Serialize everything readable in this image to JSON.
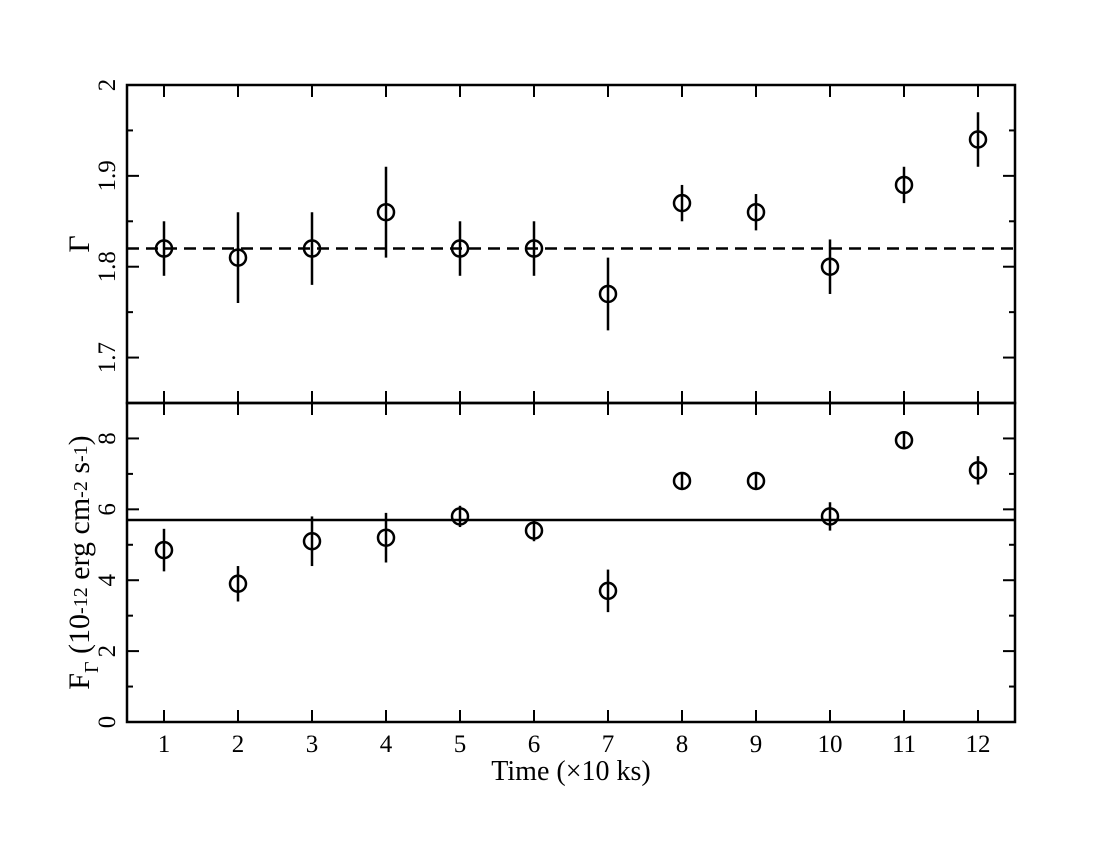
{
  "chart_data": [
    {
      "type": "scatter",
      "ylabel": "Γ",
      "x": [
        1,
        2,
        3,
        4,
        5,
        6,
        7,
        8,
        9,
        10,
        11,
        12
      ],
      "values": [
        1.82,
        1.81,
        1.82,
        1.86,
        1.82,
        1.82,
        1.77,
        1.87,
        1.86,
        1.8,
        1.89,
        1.94
      ],
      "errors": [
        0.03,
        0.05,
        0.04,
        0.05,
        0.03,
        0.03,
        0.04,
        0.02,
        0.02,
        0.03,
        0.02,
        0.03
      ],
      "color": "#000000",
      "xlim": [
        0.5,
        12.5
      ],
      "xticks": [
        1,
        2,
        3,
        4,
        5,
        6,
        7,
        8,
        9,
        10,
        11,
        12
      ],
      "xticklabels": false,
      "ylim": [
        1.65,
        2.0
      ],
      "yticks": [
        1.7,
        1.8,
        1.9,
        2
      ],
      "ref_line": {
        "value": 1.82,
        "style": "dashed"
      }
    },
    {
      "type": "scatter",
      "xlabel": "Time (×10 ks)",
      "ylabel_parts": [
        {
          "text": "F",
          "shift": "base"
        },
        {
          "text": "Γ",
          "shift": "sub"
        },
        {
          "text": " (10",
          "shift": "base"
        },
        {
          "text": "-12",
          "shift": "sup"
        },
        {
          "text": " erg cm",
          "shift": "base"
        },
        {
          "text": "-2",
          "shift": "sup"
        },
        {
          "text": " s",
          "shift": "base"
        },
        {
          "text": "-1",
          "shift": "sup"
        },
        {
          "text": ")",
          "shift": "base"
        }
      ],
      "x": [
        1,
        2,
        3,
        4,
        5,
        6,
        7,
        8,
        9,
        10,
        11,
        12
      ],
      "values": [
        4.85,
        3.9,
        5.1,
        5.2,
        5.8,
        5.4,
        3.7,
        6.8,
        6.8,
        5.8,
        7.95,
        7.1
      ],
      "errors": [
        0.6,
        0.5,
        0.7,
        0.7,
        0.3,
        0.3,
        0.6,
        0.2,
        0.2,
        0.4,
        0.2,
        0.4
      ],
      "color": "#000000",
      "xlim": [
        0.5,
        12.5
      ],
      "xticks": [
        1,
        2,
        3,
        4,
        5,
        6,
        7,
        8,
        9,
        10,
        11,
        12
      ],
      "xticklabels": true,
      "ylim": [
        0,
        9
      ],
      "yticks": [
        0,
        2,
        4,
        6,
        8
      ],
      "ref_line": {
        "value": 5.7,
        "style": "solid"
      }
    }
  ]
}
